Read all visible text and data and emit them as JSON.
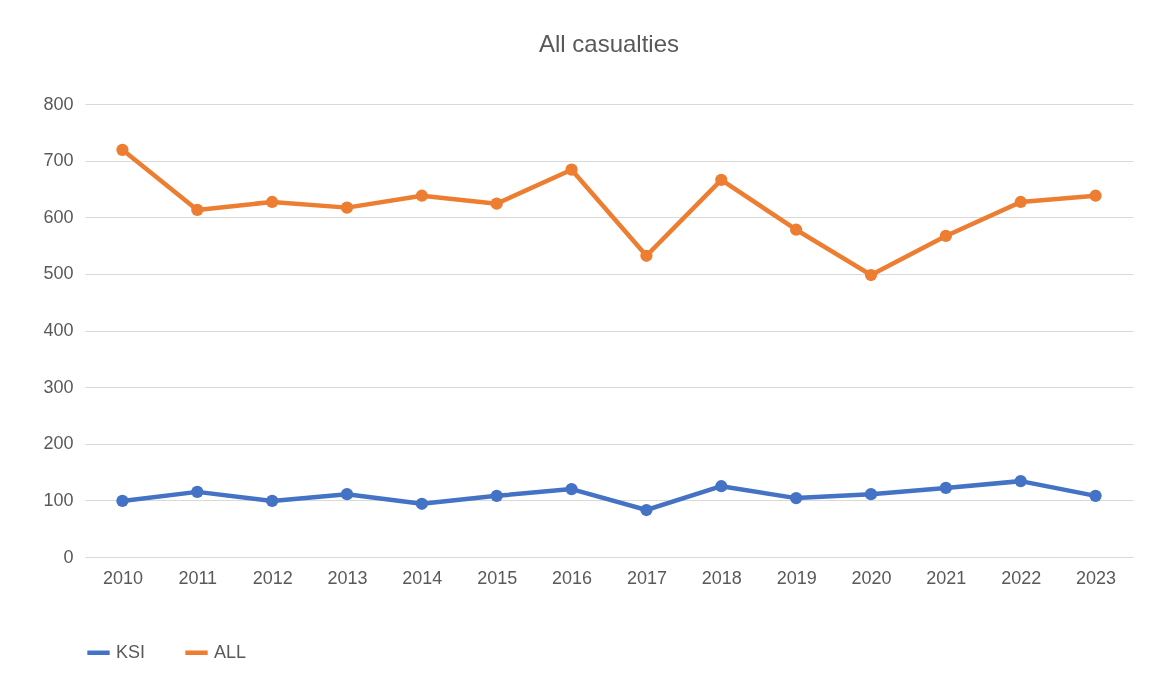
{
  "chart_data": {
    "type": "line",
    "title": "All casualties",
    "categories": [
      "2010",
      "2011",
      "2012",
      "2013",
      "2014",
      "2015",
      "2016",
      "2017",
      "2018",
      "2019",
      "2020",
      "2021",
      "2022",
      "2023"
    ],
    "series": [
      {
        "name": "KSI",
        "color": "#4472c4",
        "values": [
          99,
          115,
          99,
          111,
          94,
          108,
          120,
          83,
          125,
          104,
          111,
          122,
          134,
          108
        ]
      },
      {
        "name": "ALL",
        "color": "#ed7d31",
        "values": [
          719,
          613,
          627,
          617,
          638,
          624,
          684,
          532,
          666,
          578,
          498,
          567,
          627,
          638
        ]
      }
    ],
    "ylim": [
      0,
      800
    ],
    "yticks": [
      0,
      100,
      200,
      300,
      400,
      500,
      600,
      700,
      800
    ],
    "grid": "y",
    "legend": "bottom",
    "marker": "circle",
    "line_style": "solid"
  }
}
